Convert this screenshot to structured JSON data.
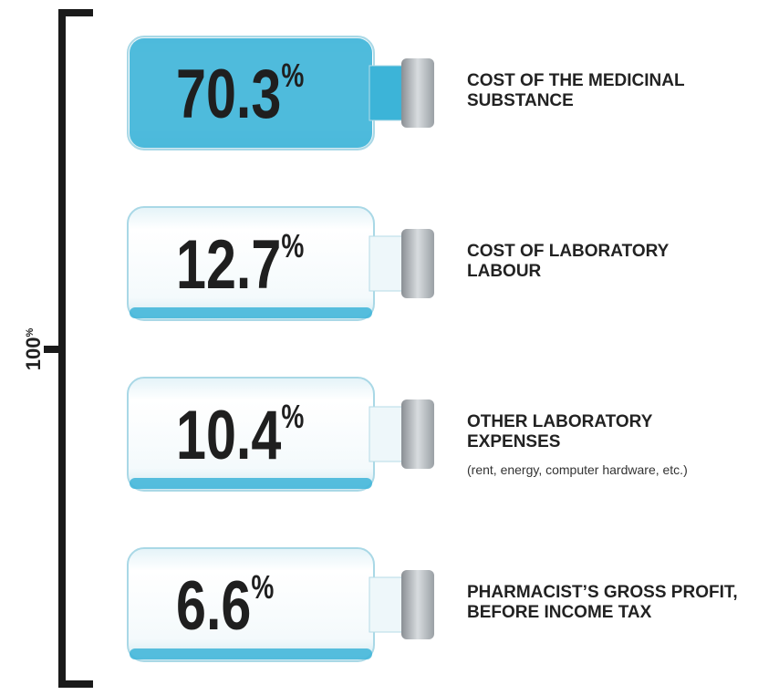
{
  "chart_data": {
    "type": "vials",
    "categories": [
      [
        "COST OF THE MEDICINAL",
        "SUBSTANCE"
      ],
      [
        "COST OF LABORATORY",
        "LABOUR"
      ],
      [
        "OTHER LABORATORY",
        "EXPENSES"
      ],
      [
        "PHARMACIST’S GROSS PROFIT,",
        "BEFORE INCOME TAX"
      ]
    ],
    "notes": [
      null,
      null,
      "(rent, energy, computer hardware, etc.)",
      null
    ],
    "values": [
      70.3,
      12.7,
      10.4,
      6.6
    ],
    "unit": "%",
    "total": 100,
    "color": "#3cb4d8"
  }
}
